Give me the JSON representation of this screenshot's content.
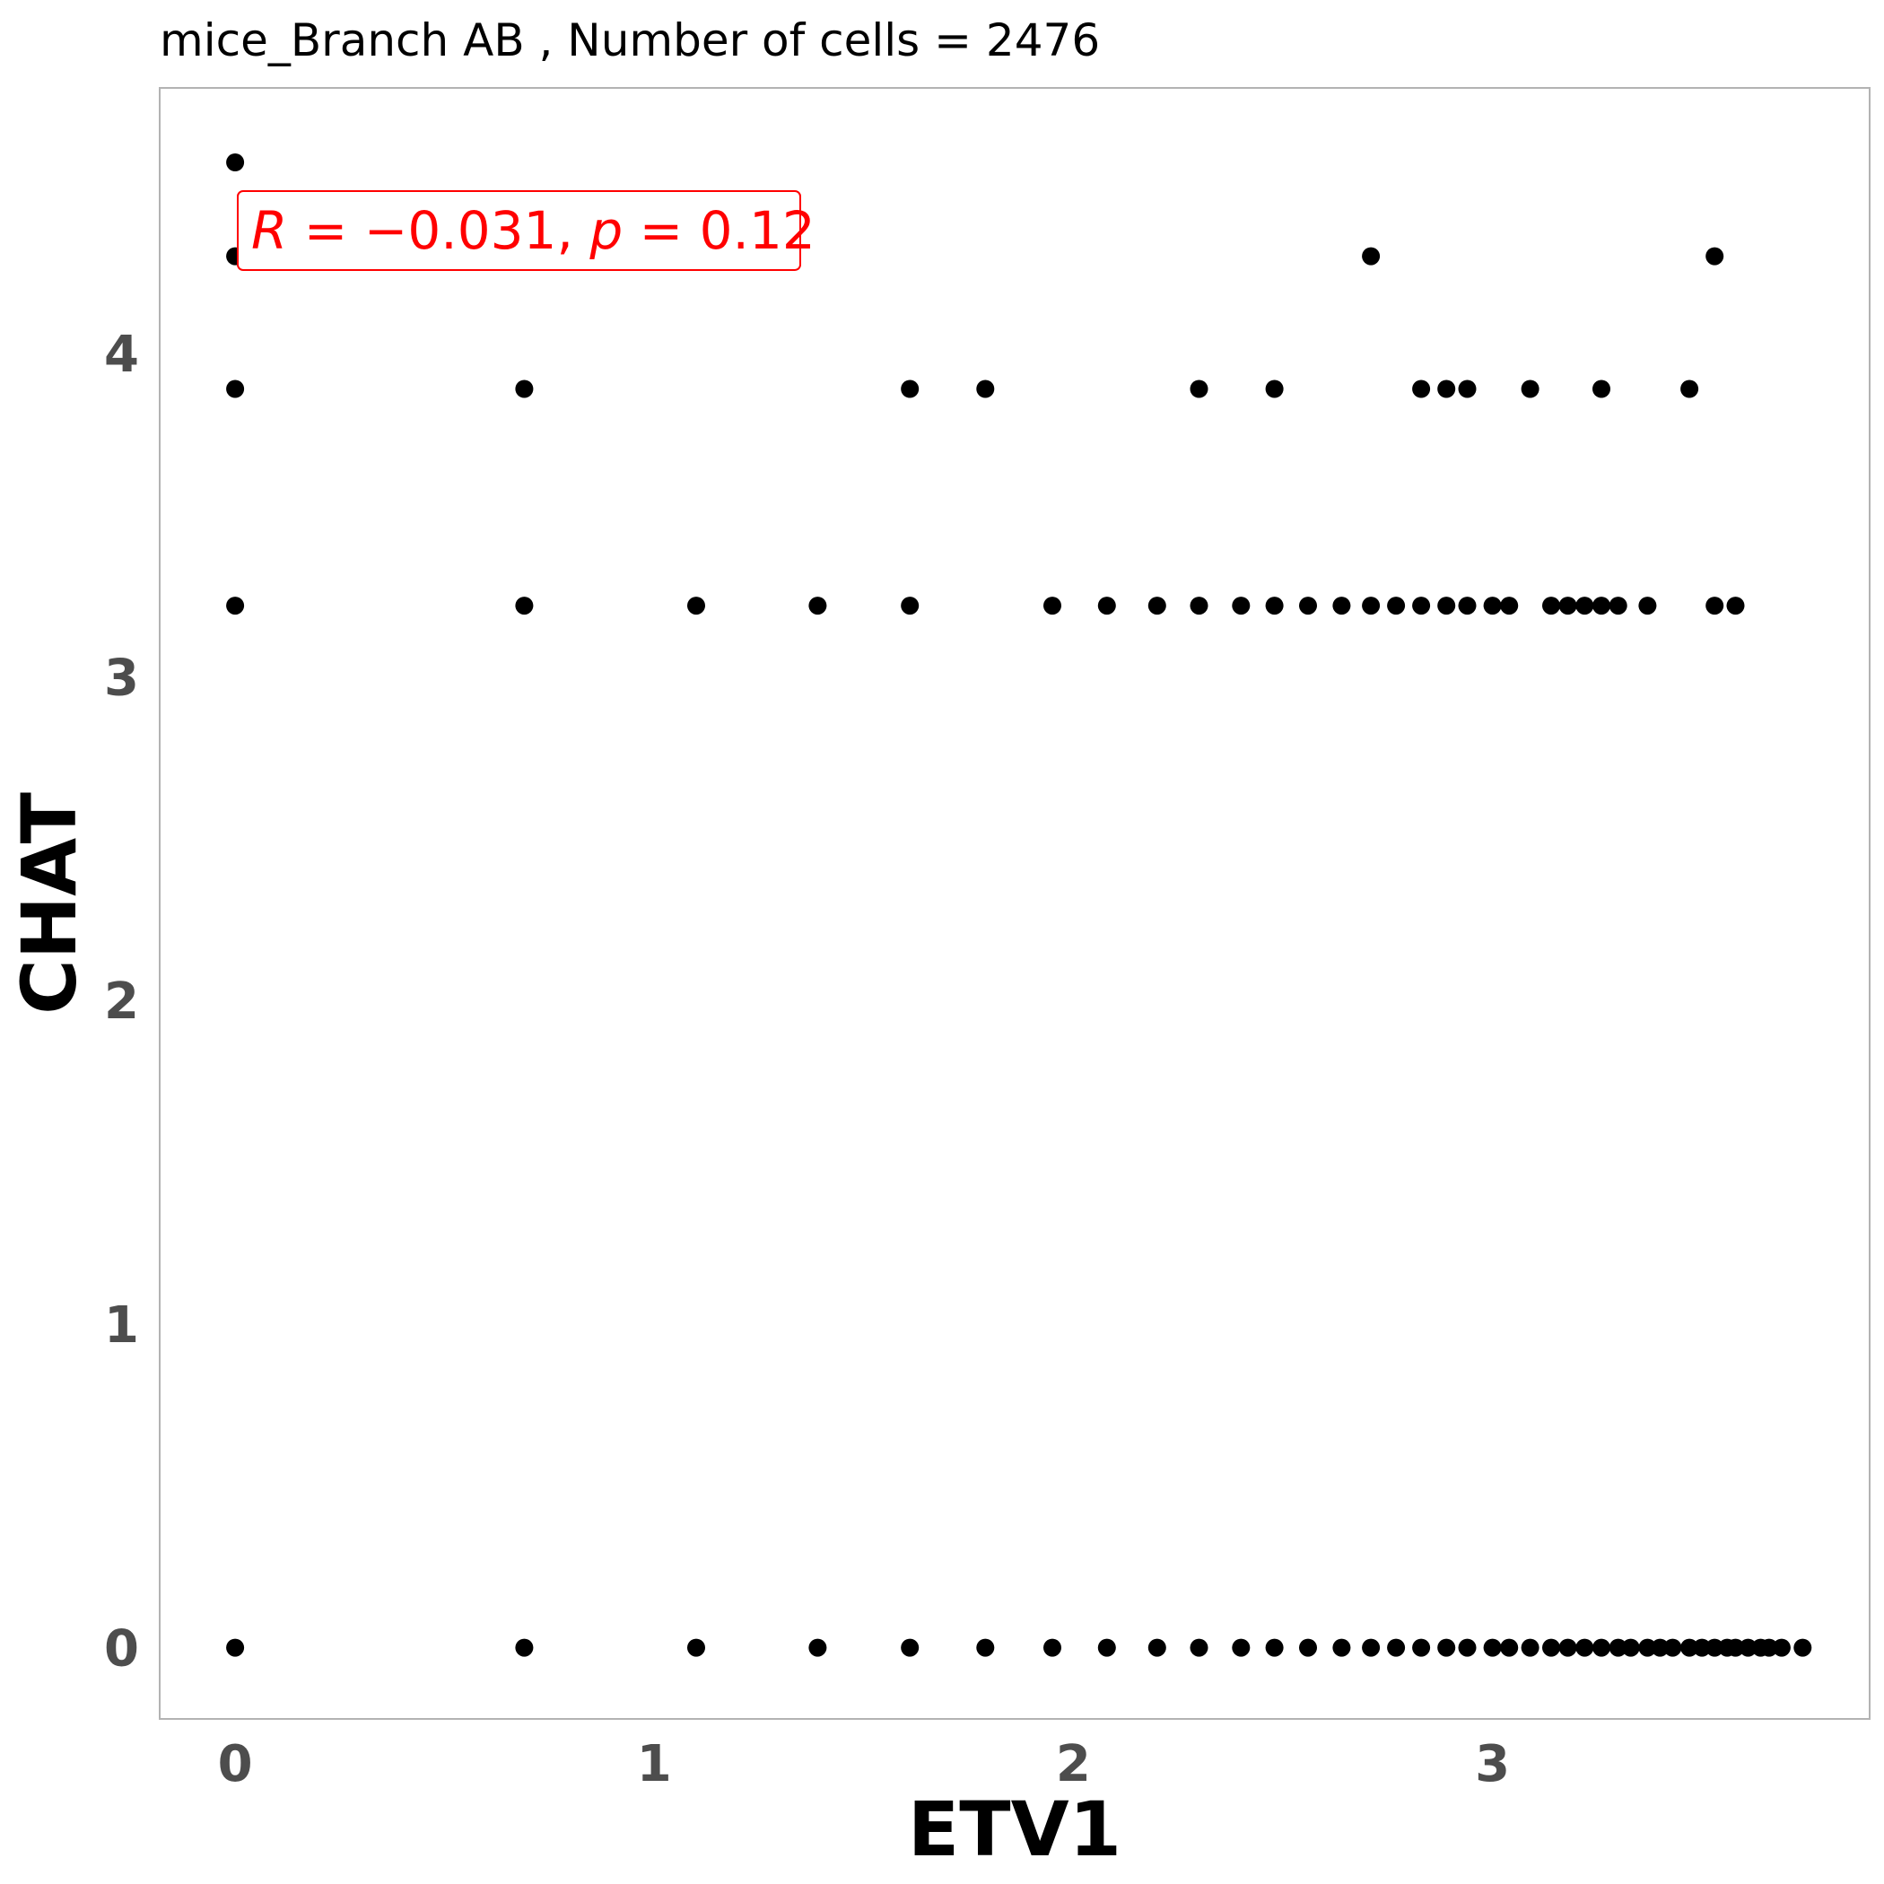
{
  "chart_data": {
    "type": "scatter",
    "title": "mice_Branch AB , Number of cells =  2476",
    "xlabel": "ETV1",
    "ylabel": "CHAT",
    "xlim": [
      -0.18,
      3.9
    ],
    "ylim": [
      -0.22,
      4.82
    ],
    "xticks": [
      0,
      1,
      2,
      3
    ],
    "yticks": [
      0,
      1,
      2,
      3,
      4
    ],
    "grid": false,
    "point_color": "#000000",
    "annotation": {
      "r_label": "R",
      "r_value": "−0.031",
      "p_label": "p",
      "p_value": "0.12",
      "color": "#ff0000"
    },
    "points": [
      {
        "x": 0,
        "y": 4.59
      },
      {
        "x": 0,
        "y": 4.3
      },
      {
        "x": 0,
        "y": 3.89
      },
      {
        "x": 0,
        "y": 3.22
      },
      {
        "x": 0,
        "y": 0
      },
      {
        "x": 0.69,
        "y": 3.89
      },
      {
        "x": 1.61,
        "y": 3.89
      },
      {
        "x": 1.79,
        "y": 3.89
      },
      {
        "x": 2.3,
        "y": 3.89
      },
      {
        "x": 2.48,
        "y": 3.89
      },
      {
        "x": 2.83,
        "y": 3.89
      },
      {
        "x": 2.89,
        "y": 3.89
      },
      {
        "x": 2.94,
        "y": 3.89
      },
      {
        "x": 3.09,
        "y": 3.89
      },
      {
        "x": 3.26,
        "y": 3.89
      },
      {
        "x": 3.47,
        "y": 3.89
      },
      {
        "x": 2.71,
        "y": 4.3
      },
      {
        "x": 3.53,
        "y": 4.3
      },
      {
        "x": 0.69,
        "y": 3.22
      },
      {
        "x": 1.1,
        "y": 3.22
      },
      {
        "x": 1.39,
        "y": 3.22
      },
      {
        "x": 1.61,
        "y": 3.22
      },
      {
        "x": 1.95,
        "y": 3.22
      },
      {
        "x": 2.08,
        "y": 3.22
      },
      {
        "x": 2.2,
        "y": 3.22
      },
      {
        "x": 2.3,
        "y": 3.22
      },
      {
        "x": 2.4,
        "y": 3.22
      },
      {
        "x": 2.48,
        "y": 3.22
      },
      {
        "x": 2.56,
        "y": 3.22
      },
      {
        "x": 2.64,
        "y": 3.22
      },
      {
        "x": 2.71,
        "y": 3.22
      },
      {
        "x": 2.77,
        "y": 3.22
      },
      {
        "x": 2.83,
        "y": 3.22
      },
      {
        "x": 2.89,
        "y": 3.22
      },
      {
        "x": 2.94,
        "y": 3.22
      },
      {
        "x": 3.0,
        "y": 3.22
      },
      {
        "x": 3.04,
        "y": 3.22
      },
      {
        "x": 3.14,
        "y": 3.22
      },
      {
        "x": 3.18,
        "y": 3.22
      },
      {
        "x": 3.22,
        "y": 3.22
      },
      {
        "x": 3.26,
        "y": 3.22
      },
      {
        "x": 3.3,
        "y": 3.22
      },
      {
        "x": 3.37,
        "y": 3.22
      },
      {
        "x": 3.53,
        "y": 3.22
      },
      {
        "x": 3.58,
        "y": 3.22
      },
      {
        "x": 0.69,
        "y": 0
      },
      {
        "x": 1.1,
        "y": 0
      },
      {
        "x": 1.39,
        "y": 0
      },
      {
        "x": 1.61,
        "y": 0
      },
      {
        "x": 1.79,
        "y": 0
      },
      {
        "x": 1.95,
        "y": 0
      },
      {
        "x": 2.08,
        "y": 0
      },
      {
        "x": 2.2,
        "y": 0
      },
      {
        "x": 2.3,
        "y": 0
      },
      {
        "x": 2.4,
        "y": 0
      },
      {
        "x": 2.48,
        "y": 0
      },
      {
        "x": 2.56,
        "y": 0
      },
      {
        "x": 2.64,
        "y": 0
      },
      {
        "x": 2.71,
        "y": 0
      },
      {
        "x": 2.77,
        "y": 0
      },
      {
        "x": 2.83,
        "y": 0
      },
      {
        "x": 2.89,
        "y": 0
      },
      {
        "x": 2.94,
        "y": 0
      },
      {
        "x": 3.0,
        "y": 0
      },
      {
        "x": 3.04,
        "y": 0
      },
      {
        "x": 3.09,
        "y": 0
      },
      {
        "x": 3.14,
        "y": 0
      },
      {
        "x": 3.18,
        "y": 0
      },
      {
        "x": 3.22,
        "y": 0
      },
      {
        "x": 3.26,
        "y": 0
      },
      {
        "x": 3.3,
        "y": 0
      },
      {
        "x": 3.33,
        "y": 0
      },
      {
        "x": 3.37,
        "y": 0
      },
      {
        "x": 3.4,
        "y": 0
      },
      {
        "x": 3.43,
        "y": 0
      },
      {
        "x": 3.47,
        "y": 0
      },
      {
        "x": 3.5,
        "y": 0
      },
      {
        "x": 3.53,
        "y": 0
      },
      {
        "x": 3.56,
        "y": 0
      },
      {
        "x": 3.58,
        "y": 0
      },
      {
        "x": 3.61,
        "y": 0
      },
      {
        "x": 3.64,
        "y": 0
      },
      {
        "x": 3.66,
        "y": 0
      },
      {
        "x": 3.69,
        "y": 0
      },
      {
        "x": 3.74,
        "y": 0
      }
    ]
  }
}
